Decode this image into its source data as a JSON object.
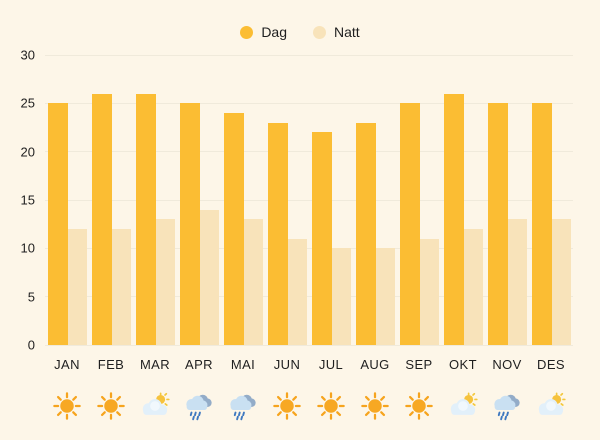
{
  "legend": {
    "items": [
      {
        "label": "Dag",
        "color": "#FBBD33"
      },
      {
        "label": "Natt",
        "color": "#F8E3BA"
      }
    ]
  },
  "chart_data": {
    "type": "bar",
    "categories": [
      "JAN",
      "FEB",
      "MAR",
      "APR",
      "MAI",
      "JUN",
      "JUL",
      "AUG",
      "SEP",
      "OKT",
      "NOV",
      "DES"
    ],
    "series": [
      {
        "name": "Dag",
        "color": "#FBBD33",
        "values": [
          25,
          26,
          26,
          25,
          24,
          23,
          22,
          23,
          25,
          26,
          25,
          25
        ]
      },
      {
        "name": "Natt",
        "color": "#F8E3BA",
        "values": [
          12,
          12,
          13,
          14,
          13,
          11,
          10,
          10,
          11,
          12,
          13,
          13
        ]
      }
    ],
    "ylim": [
      0,
      30
    ],
    "yticks": [
      0,
      5,
      10,
      15,
      20,
      25,
      30
    ],
    "grid": true,
    "legend_position": "top-center"
  },
  "weather_icons": [
    {
      "month": "JAN",
      "icon": "sun"
    },
    {
      "month": "FEB",
      "icon": "sun"
    },
    {
      "month": "MAR",
      "icon": "sun-behind-cloud"
    },
    {
      "month": "APR",
      "icon": "rain-cloud"
    },
    {
      "month": "MAI",
      "icon": "rain-cloud"
    },
    {
      "month": "JUN",
      "icon": "sun"
    },
    {
      "month": "JUL",
      "icon": "sun"
    },
    {
      "month": "AUG",
      "icon": "sun"
    },
    {
      "month": "SEP",
      "icon": "sun"
    },
    {
      "month": "OKT",
      "icon": "sun-behind-cloud"
    },
    {
      "month": "NOV",
      "icon": "rain-cloud"
    },
    {
      "month": "DES",
      "icon": "sun-behind-cloud"
    }
  ],
  "colors": {
    "background": "#FDF6E8",
    "gridline": "#F0EADB",
    "text": "#1F1F1F",
    "dag": "#FBBD33",
    "natt": "#F8E3BA"
  }
}
